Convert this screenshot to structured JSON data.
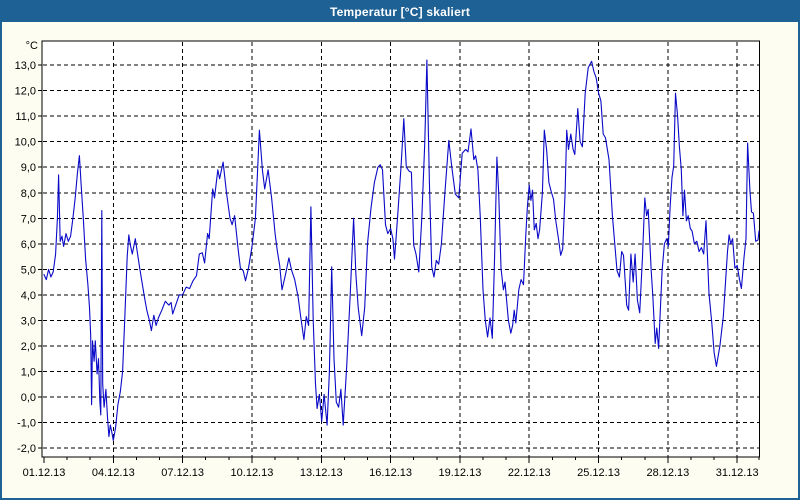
{
  "window": {
    "title": "Temperatur [°C] skaliert"
  },
  "colors": {
    "titlebar": "#1e6195",
    "window_frame": "#1e6195",
    "window_bg": "#fdfdf2",
    "plot_bg": "#ffffff",
    "grid": "#000000",
    "axis": "#000000",
    "text": "#000000",
    "line": "#0a0ac8"
  },
  "chart_data": {
    "type": "line",
    "title": "Temperatur [°C] skaliert",
    "ylabel": "°C",
    "xlabel": "",
    "grid": "dashed",
    "legend": "none",
    "ylim": [
      -2,
      13
    ],
    "y_tick_step": 1.0,
    "y_tick_labels": [
      "13,0",
      "12,0",
      "11,0",
      "10,0",
      "9,0",
      "8,0",
      "7,0",
      "6,0",
      "5,0",
      "4,0",
      "3,0",
      "2,0",
      "1,0",
      "0,0",
      "-1,0",
      "-2,0"
    ],
    "x_tick_days": [
      0,
      3,
      6,
      9,
      12,
      15,
      18,
      21,
      24,
      27,
      30
    ],
    "x_tick_labels": [
      "01.12.13",
      "04.12.13",
      "07.12.13",
      "10.12.13",
      "13.12.13",
      "16.12.13",
      "19.12.13",
      "22.12.13",
      "25.12.13",
      "28.12.13",
      "31.12.13"
    ],
    "x_minor_step_days": 1,
    "x_range_days": [
      0,
      31
    ],
    "series": [
      {
        "name": "Temperatur",
        "unit": "°C",
        "points": [
          [
            0.0,
            4.8
          ],
          [
            0.1,
            4.6
          ],
          [
            0.2,
            5.0
          ],
          [
            0.3,
            4.7
          ],
          [
            0.4,
            4.9
          ],
          [
            0.5,
            5.6
          ],
          [
            0.58,
            7.0
          ],
          [
            0.63,
            8.7
          ],
          [
            0.7,
            6.1
          ],
          [
            0.78,
            6.3
          ],
          [
            0.85,
            5.9
          ],
          [
            0.95,
            6.4
          ],
          [
            1.05,
            6.1
          ],
          [
            1.15,
            6.3
          ],
          [
            1.25,
            7.0
          ],
          [
            1.35,
            7.8
          ],
          [
            1.45,
            8.8
          ],
          [
            1.53,
            9.45
          ],
          [
            1.6,
            8.4
          ],
          [
            1.7,
            7.0
          ],
          [
            1.8,
            5.4
          ],
          [
            1.9,
            4.4
          ],
          [
            1.97,
            3.5
          ],
          [
            2.02,
            2.4
          ],
          [
            2.06,
            -0.3
          ],
          [
            2.1,
            2.2
          ],
          [
            2.17,
            1.4
          ],
          [
            2.22,
            2.2
          ],
          [
            2.3,
            0.9
          ],
          [
            2.36,
            1.5
          ],
          [
            2.42,
            -0.2
          ],
          [
            2.46,
            -0.7
          ],
          [
            2.5,
            7.3
          ],
          [
            2.54,
            0.5
          ],
          [
            2.6,
            -0.4
          ],
          [
            2.68,
            0.3
          ],
          [
            2.75,
            -0.8
          ],
          [
            2.81,
            -1.55
          ],
          [
            2.87,
            -1.1
          ],
          [
            2.93,
            -1.35
          ],
          [
            3.0,
            -1.7
          ],
          [
            3.1,
            -1.2
          ],
          [
            3.2,
            -0.3
          ],
          [
            3.3,
            0.2
          ],
          [
            3.4,
            1.0
          ],
          [
            3.5,
            3.2
          ],
          [
            3.6,
            5.5
          ],
          [
            3.67,
            6.35
          ],
          [
            3.75,
            5.9
          ],
          [
            3.82,
            5.6
          ],
          [
            3.95,
            6.2
          ],
          [
            4.05,
            5.6
          ],
          [
            4.15,
            5.0
          ],
          [
            4.25,
            4.45
          ],
          [
            4.35,
            3.9
          ],
          [
            4.45,
            3.4
          ],
          [
            4.55,
            3.05
          ],
          [
            4.65,
            2.6
          ],
          [
            4.75,
            3.2
          ],
          [
            4.85,
            2.8
          ],
          [
            4.95,
            3.1
          ],
          [
            5.1,
            3.4
          ],
          [
            5.25,
            3.75
          ],
          [
            5.4,
            3.6
          ],
          [
            5.5,
            3.7
          ],
          [
            5.57,
            3.25
          ],
          [
            5.7,
            3.6
          ],
          [
            5.85,
            4.0
          ],
          [
            6.0,
            4.0
          ],
          [
            6.15,
            4.3
          ],
          [
            6.3,
            4.25
          ],
          [
            6.45,
            4.55
          ],
          [
            6.6,
            4.75
          ],
          [
            6.72,
            5.6
          ],
          [
            6.85,
            5.65
          ],
          [
            6.95,
            5.25
          ],
          [
            7.08,
            6.4
          ],
          [
            7.15,
            6.2
          ],
          [
            7.3,
            8.15
          ],
          [
            7.38,
            7.8
          ],
          [
            7.52,
            8.9
          ],
          [
            7.6,
            8.55
          ],
          [
            7.75,
            9.2
          ],
          [
            7.9,
            8.0
          ],
          [
            8.05,
            7.0
          ],
          [
            8.14,
            6.75
          ],
          [
            8.25,
            7.1
          ],
          [
            8.4,
            5.8
          ],
          [
            8.5,
            5.05
          ],
          [
            8.62,
            4.95
          ],
          [
            8.72,
            4.55
          ],
          [
            8.85,
            5.05
          ],
          [
            9.0,
            5.9
          ],
          [
            9.15,
            7.0
          ],
          [
            9.32,
            10.45
          ],
          [
            9.45,
            8.9
          ],
          [
            9.55,
            8.15
          ],
          [
            9.7,
            8.9
          ],
          [
            9.85,
            7.8
          ],
          [
            10.0,
            6.4
          ],
          [
            10.1,
            5.7
          ],
          [
            10.2,
            5.15
          ],
          [
            10.3,
            4.2
          ],
          [
            10.45,
            4.8
          ],
          [
            10.6,
            5.45
          ],
          [
            10.72,
            4.95
          ],
          [
            10.85,
            4.6
          ],
          [
            11.0,
            3.9
          ],
          [
            11.1,
            3.2
          ],
          [
            11.25,
            2.25
          ],
          [
            11.35,
            3.15
          ],
          [
            11.45,
            2.8
          ],
          [
            11.55,
            7.45
          ],
          [
            11.65,
            3.0
          ],
          [
            11.75,
            0.5
          ],
          [
            11.82,
            -0.45
          ],
          [
            11.92,
            0.1
          ],
          [
            12.02,
            -0.95
          ],
          [
            12.12,
            0.1
          ],
          [
            12.25,
            -1.1
          ],
          [
            12.35,
            1.0
          ],
          [
            12.45,
            5.1
          ],
          [
            12.55,
            1.5
          ],
          [
            12.65,
            -0.2
          ],
          [
            12.75,
            -0.4
          ],
          [
            12.85,
            0.3
          ],
          [
            12.95,
            -1.1
          ],
          [
            13.1,
            1.2
          ],
          [
            13.25,
            4.0
          ],
          [
            13.4,
            7.0
          ],
          [
            13.5,
            4.8
          ],
          [
            13.6,
            3.5
          ],
          [
            13.75,
            2.4
          ],
          [
            13.88,
            3.5
          ],
          [
            14.0,
            6.0
          ],
          [
            14.15,
            7.4
          ],
          [
            14.3,
            8.4
          ],
          [
            14.45,
            9.0
          ],
          [
            14.55,
            9.1
          ],
          [
            14.65,
            8.9
          ],
          [
            14.78,
            6.75
          ],
          [
            14.88,
            6.4
          ],
          [
            15.0,
            6.6
          ],
          [
            15.1,
            6.2
          ],
          [
            15.17,
            5.4
          ],
          [
            15.3,
            7.0
          ],
          [
            15.45,
            9.0
          ],
          [
            15.57,
            10.9
          ],
          [
            15.68,
            9.0
          ],
          [
            15.8,
            8.85
          ],
          [
            15.9,
            8.8
          ],
          [
            16.0,
            5.95
          ],
          [
            16.1,
            5.6
          ],
          [
            16.22,
            4.9
          ],
          [
            16.35,
            7.0
          ],
          [
            16.48,
            10.0
          ],
          [
            16.57,
            13.2
          ],
          [
            16.68,
            8.4
          ],
          [
            16.78,
            5.1
          ],
          [
            16.88,
            4.7
          ],
          [
            16.98,
            5.35
          ],
          [
            17.08,
            5.2
          ],
          [
            17.2,
            6.0
          ],
          [
            17.35,
            8.0
          ],
          [
            17.52,
            10.05
          ],
          [
            17.65,
            9.0
          ],
          [
            17.8,
            7.95
          ],
          [
            17.95,
            7.8
          ],
          [
            18.1,
            9.55
          ],
          [
            18.25,
            9.7
          ],
          [
            18.35,
            9.6
          ],
          [
            18.48,
            10.5
          ],
          [
            18.6,
            9.3
          ],
          [
            18.68,
            9.45
          ],
          [
            18.78,
            8.9
          ],
          [
            18.88,
            7.1
          ],
          [
            19.0,
            4.2
          ],
          [
            19.1,
            3.0
          ],
          [
            19.2,
            2.35
          ],
          [
            19.3,
            3.1
          ],
          [
            19.4,
            2.3
          ],
          [
            19.5,
            5.5
          ],
          [
            19.6,
            9.4
          ],
          [
            19.68,
            8.0
          ],
          [
            19.78,
            5.05
          ],
          [
            19.88,
            4.2
          ],
          [
            19.95,
            4.5
          ],
          [
            20.1,
            3.0
          ],
          [
            20.2,
            2.5
          ],
          [
            20.28,
            2.8
          ],
          [
            20.35,
            3.4
          ],
          [
            20.42,
            2.9
          ],
          [
            20.55,
            4.2
          ],
          [
            20.65,
            4.6
          ],
          [
            20.75,
            4.4
          ],
          [
            20.85,
            6.35
          ],
          [
            20.92,
            7.45
          ],
          [
            21.0,
            8.3
          ],
          [
            21.07,
            7.7
          ],
          [
            21.14,
            8.1
          ],
          [
            21.22,
            6.55
          ],
          [
            21.3,
            6.8
          ],
          [
            21.38,
            6.2
          ],
          [
            21.45,
            6.55
          ],
          [
            21.57,
            8.0
          ],
          [
            21.65,
            10.45
          ],
          [
            21.75,
            9.7
          ],
          [
            21.85,
            8.4
          ],
          [
            21.95,
            8.05
          ],
          [
            22.05,
            7.75
          ],
          [
            22.15,
            6.9
          ],
          [
            22.25,
            6.3
          ],
          [
            22.36,
            5.55
          ],
          [
            22.45,
            5.8
          ],
          [
            22.55,
            8.0
          ],
          [
            22.62,
            10.45
          ],
          [
            22.7,
            9.7
          ],
          [
            22.8,
            10.3
          ],
          [
            22.9,
            9.7
          ],
          [
            22.97,
            9.5
          ],
          [
            23.1,
            11.3
          ],
          [
            23.2,
            10.0
          ],
          [
            23.3,
            9.8
          ],
          [
            23.42,
            11.9
          ],
          [
            23.55,
            12.9
          ],
          [
            23.7,
            13.15
          ],
          [
            23.8,
            12.75
          ],
          [
            23.9,
            12.5
          ],
          [
            24.0,
            11.9
          ],
          [
            24.1,
            11.6
          ],
          [
            24.2,
            10.3
          ],
          [
            24.3,
            10.15
          ],
          [
            24.45,
            9.3
          ],
          [
            24.6,
            7.1
          ],
          [
            24.8,
            4.95
          ],
          [
            24.9,
            4.7
          ],
          [
            25.0,
            5.7
          ],
          [
            25.08,
            5.55
          ],
          [
            25.15,
            4.6
          ],
          [
            25.22,
            3.6
          ],
          [
            25.3,
            3.4
          ],
          [
            25.4,
            5.6
          ],
          [
            25.5,
            4.5
          ],
          [
            25.58,
            5.6
          ],
          [
            25.68,
            3.8
          ],
          [
            25.78,
            3.3
          ],
          [
            25.9,
            5.5
          ],
          [
            26.0,
            7.8
          ],
          [
            26.08,
            7.1
          ],
          [
            26.15,
            7.35
          ],
          [
            26.28,
            4.95
          ],
          [
            26.35,
            3.9
          ],
          [
            26.45,
            2.1
          ],
          [
            26.52,
            2.7
          ],
          [
            26.6,
            1.9
          ],
          [
            26.75,
            4.95
          ],
          [
            26.85,
            6.0
          ],
          [
            26.95,
            6.2
          ],
          [
            27.02,
            5.9
          ],
          [
            27.1,
            7.5
          ],
          [
            27.18,
            8.6
          ],
          [
            27.25,
            9.05
          ],
          [
            27.33,
            11.9
          ],
          [
            27.42,
            11.0
          ],
          [
            27.5,
            9.8
          ],
          [
            27.58,
            8.9
          ],
          [
            27.65,
            7.1
          ],
          [
            27.72,
            8.1
          ],
          [
            27.8,
            6.9
          ],
          [
            27.88,
            7.1
          ],
          [
            27.97,
            6.6
          ],
          [
            28.05,
            6.5
          ],
          [
            28.15,
            6.0
          ],
          [
            28.25,
            6.1
          ],
          [
            28.35,
            5.7
          ],
          [
            28.45,
            5.85
          ],
          [
            28.55,
            5.6
          ],
          [
            28.65,
            6.9
          ],
          [
            28.78,
            4.05
          ],
          [
            28.9,
            2.9
          ],
          [
            29.0,
            1.75
          ],
          [
            29.1,
            1.2
          ],
          [
            29.25,
            2.0
          ],
          [
            29.4,
            3.15
          ],
          [
            29.5,
            4.55
          ],
          [
            29.58,
            5.7
          ],
          [
            29.65,
            6.35
          ],
          [
            29.72,
            6.0
          ],
          [
            29.8,
            6.2
          ],
          [
            29.9,
            5.05
          ],
          [
            30.0,
            5.15
          ],
          [
            30.1,
            4.6
          ],
          [
            30.18,
            4.25
          ],
          [
            30.3,
            5.5
          ],
          [
            30.38,
            6.2
          ],
          [
            30.45,
            9.95
          ],
          [
            30.55,
            8.1
          ],
          [
            30.62,
            7.25
          ],
          [
            30.7,
            7.2
          ],
          [
            30.8,
            6.1
          ],
          [
            30.9,
            6.15
          ],
          [
            31.0,
            6.5
          ]
        ]
      }
    ]
  }
}
